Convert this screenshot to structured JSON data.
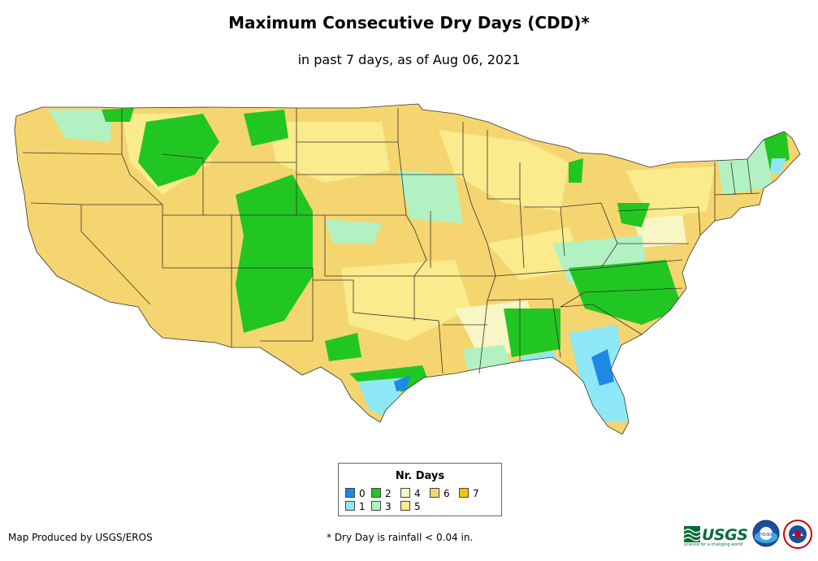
{
  "title": "Maximum Consecutive Dry Days (CDD)*",
  "subtitle": "in past 7 days, as of Aug 06, 2021",
  "legend": {
    "title": "Nr. Days",
    "items": [
      {
        "label": "0",
        "color": "#1e88e5"
      },
      {
        "label": "1",
        "color": "#8ee8f5"
      },
      {
        "label": "2",
        "color": "#22c622"
      },
      {
        "label": "3",
        "color": "#b2f2c2"
      },
      {
        "label": "4",
        "color": "#f9f6c6"
      },
      {
        "label": "5",
        "color": "#faeb8c"
      },
      {
        "label": "6",
        "color": "#f5d56f"
      },
      {
        "label": "7",
        "color": "#f5c400"
      }
    ]
  },
  "credit": "Map Produced by USGS/EROS",
  "footnote": "* Dry Day is rainfall < 0.04 in.",
  "logos": {
    "usgs_text": "USGS",
    "usgs_tagline": "science for a changing world",
    "noaa_text": "noaa"
  }
}
